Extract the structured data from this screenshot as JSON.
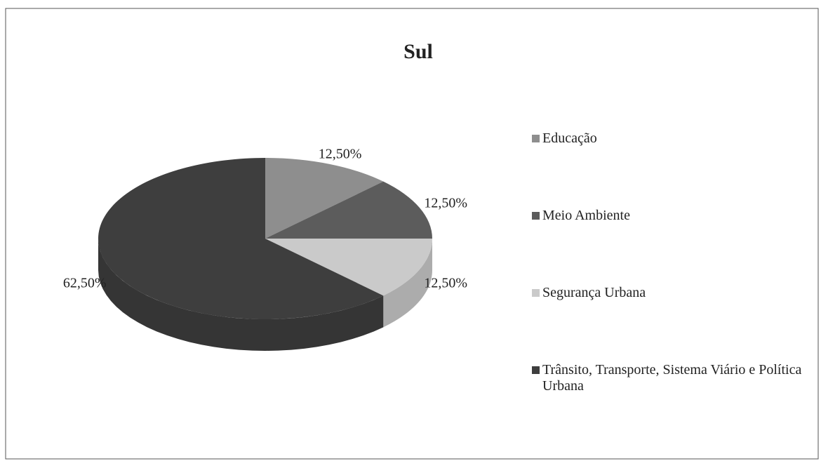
{
  "chart_data": {
    "type": "pie",
    "title": "Sul",
    "categories": [
      "Educação",
      "Meio Ambiente",
      "Segurança Urbana",
      "Trânsito, Transporte, Sistema Viário e Política Urbana"
    ],
    "values": [
      12.5,
      12.5,
      12.5,
      62.5
    ],
    "value_labels": [
      "12,50%",
      "12,50%",
      "12,50%",
      "62,50%"
    ],
    "colors": [
      "#8e8e8e",
      "#5c5c5c",
      "#cacaca",
      "#3e3e3e"
    ],
    "legend": "right"
  }
}
